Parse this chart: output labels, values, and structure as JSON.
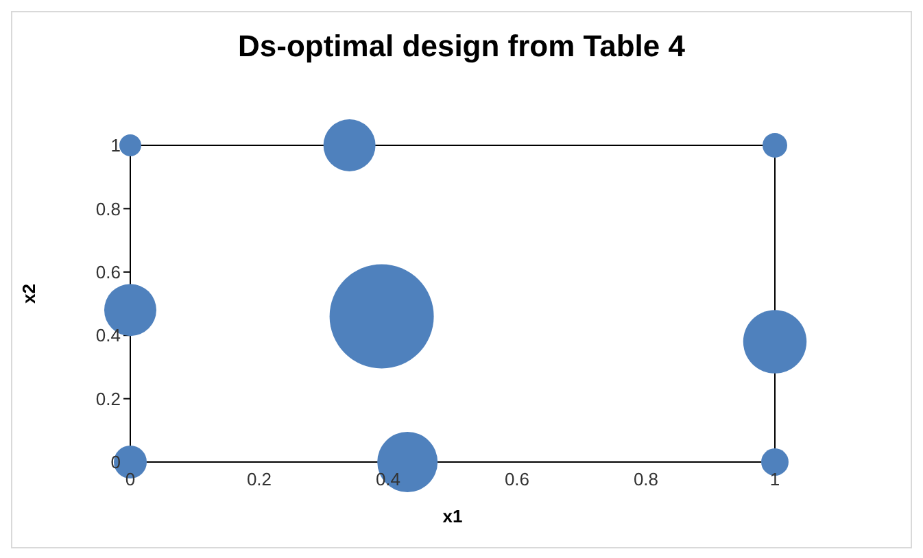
{
  "chart_data": {
    "type": "bubble",
    "title": "Ds-optimal design from Table 4",
    "xlabel": "x1",
    "ylabel": "x2",
    "series": [
      {
        "color": "#4f81bd",
        "x": [
          0,
          0.34,
          1,
          0,
          0.39,
          1,
          0,
          0.43,
          1
        ],
        "values": [
          1,
          1,
          1,
          0.48,
          0.46,
          0.38,
          0,
          0,
          0
        ],
        "sizes": [
          0.044,
          0.25,
          0.056,
          0.25,
          1,
          0.37,
          0.1,
          0.335,
          0.069
        ]
      }
    ],
    "xlim": [
      0,
      1
    ],
    "ylim": [
      0,
      1
    ],
    "xticks": [
      0,
      0.2,
      0.4,
      0.6,
      0.8,
      1
    ],
    "yticks": [
      0,
      0.2,
      0.4,
      0.6,
      0.8,
      1
    ],
    "grid": false,
    "legend": false
  }
}
